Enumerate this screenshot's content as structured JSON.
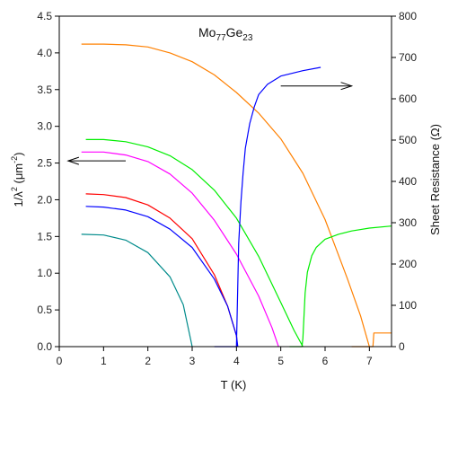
{
  "chart_data": {
    "type": "line",
    "title_parts": {
      "base1": "Mo",
      "sub1": "77",
      "base2": "Ge",
      "sub2": "23"
    },
    "xlabel": "T (K)",
    "ylabel_left_parts": {
      "pre": "1/λ",
      "sup1": "2",
      "mid": " (μm",
      "sup2": "-2",
      "post": ")"
    },
    "ylabel_right": "Sheet Resistance (Ω)",
    "xlim": [
      0,
      7.5
    ],
    "ylim_left": [
      0,
      4.5
    ],
    "ylim_right": [
      0,
      800
    ],
    "x_ticks": [
      "0",
      "1",
      "2",
      "3",
      "4",
      "5",
      "6",
      "7"
    ],
    "y_left_ticks": [
      "0.0",
      "0.5",
      "1.0",
      "1.5",
      "2.0",
      "2.5",
      "3.0",
      "3.5",
      "4.0",
      "4.5"
    ],
    "y_right_ticks": [
      "0",
      "100",
      "200",
      "300",
      "400",
      "500",
      "600",
      "700",
      "800"
    ],
    "grid": false,
    "annotations": [
      {
        "type": "arrow",
        "from": [
          1.5,
          2.53
        ],
        "to": [
          0.2,
          2.53
        ],
        "axis": "left",
        "meaning": "curves read on left axis"
      },
      {
        "type": "arrow",
        "from": [
          5.0,
          3.55
        ],
        "to": [
          6.6,
          3.55
        ],
        "axis": "left",
        "meaning": "curves read on right axis"
      }
    ],
    "series": [
      {
        "color": "#ff8000",
        "axis": "left",
        "x": [
          0.5,
          1.0,
          1.5,
          2.0,
          2.5,
          3.0,
          3.5,
          4.0,
          4.5,
          5.0,
          5.5,
          6.0,
          6.5,
          6.8,
          7.0
        ],
        "y": [
          4.12,
          4.12,
          4.11,
          4.08,
          4.0,
          3.88,
          3.7,
          3.46,
          3.18,
          2.83,
          2.36,
          1.73,
          0.93,
          0.42,
          0.0
        ]
      },
      {
        "color": "#00ee00",
        "axis": "left",
        "x": [
          0.6,
          1.0,
          1.5,
          2.0,
          2.5,
          3.0,
          3.5,
          4.0,
          4.5,
          5.0,
          5.3,
          5.5
        ],
        "y": [
          2.82,
          2.82,
          2.79,
          2.72,
          2.6,
          2.41,
          2.13,
          1.75,
          1.23,
          0.6,
          0.22,
          0.0
        ]
      },
      {
        "color": "#ff00ff",
        "axis": "left",
        "x": [
          0.5,
          1.0,
          1.5,
          2.0,
          2.5,
          3.0,
          3.5,
          4.0,
          4.5,
          4.8,
          4.95
        ],
        "y": [
          2.65,
          2.65,
          2.61,
          2.52,
          2.35,
          2.09,
          1.72,
          1.26,
          0.69,
          0.26,
          0.0
        ]
      },
      {
        "color": "#ff0000",
        "axis": "left",
        "x": [
          0.6,
          1.0,
          1.5,
          2.0,
          2.5,
          3.0,
          3.5,
          3.8,
          4.0,
          4.02
        ],
        "y": [
          2.08,
          2.07,
          2.03,
          1.93,
          1.75,
          1.47,
          0.98,
          0.55,
          0.15,
          0.0
        ]
      },
      {
        "color": "#0000ff",
        "axis": "left",
        "x": [
          0.6,
          1.0,
          1.5,
          2.0,
          2.5,
          3.0,
          3.5,
          3.8,
          4.0,
          4.03
        ],
        "y": [
          1.91,
          1.9,
          1.86,
          1.77,
          1.6,
          1.35,
          0.92,
          0.55,
          0.15,
          0.0
        ]
      },
      {
        "color": "#008b8b",
        "axis": "left",
        "x": [
          0.5,
          1.0,
          1.5,
          2.0,
          2.5,
          2.8,
          3.0
        ],
        "y": [
          1.53,
          1.52,
          1.45,
          1.28,
          0.95,
          0.57,
          0.0
        ]
      },
      {
        "color": "#0000ff",
        "axis": "right",
        "x": [
          3.5,
          3.9,
          4.0,
          4.05,
          4.1,
          4.15,
          4.2,
          4.3,
          4.4,
          4.5,
          4.7,
          5.0,
          5.5,
          5.9
        ],
        "y": [
          0,
          0,
          0,
          250,
          350,
          420,
          480,
          540,
          580,
          610,
          635,
          655,
          668,
          676
        ]
      },
      {
        "color": "#00ee00",
        "axis": "right",
        "x": [
          5.2,
          5.48,
          5.5,
          5.55,
          5.6,
          5.7,
          5.8,
          6.0,
          6.3,
          6.6,
          7.0,
          7.5
        ],
        "y": [
          0,
          0,
          20,
          130,
          180,
          220,
          240,
          260,
          272,
          280,
          287,
          292
        ]
      },
      {
        "color": "#ff8000",
        "axis": "right",
        "x": [
          6.6,
          7.0,
          7.05,
          7.08,
          7.1,
          7.5
        ],
        "y": [
          0,
          0,
          0,
          0,
          33,
          33
        ]
      }
    ]
  }
}
